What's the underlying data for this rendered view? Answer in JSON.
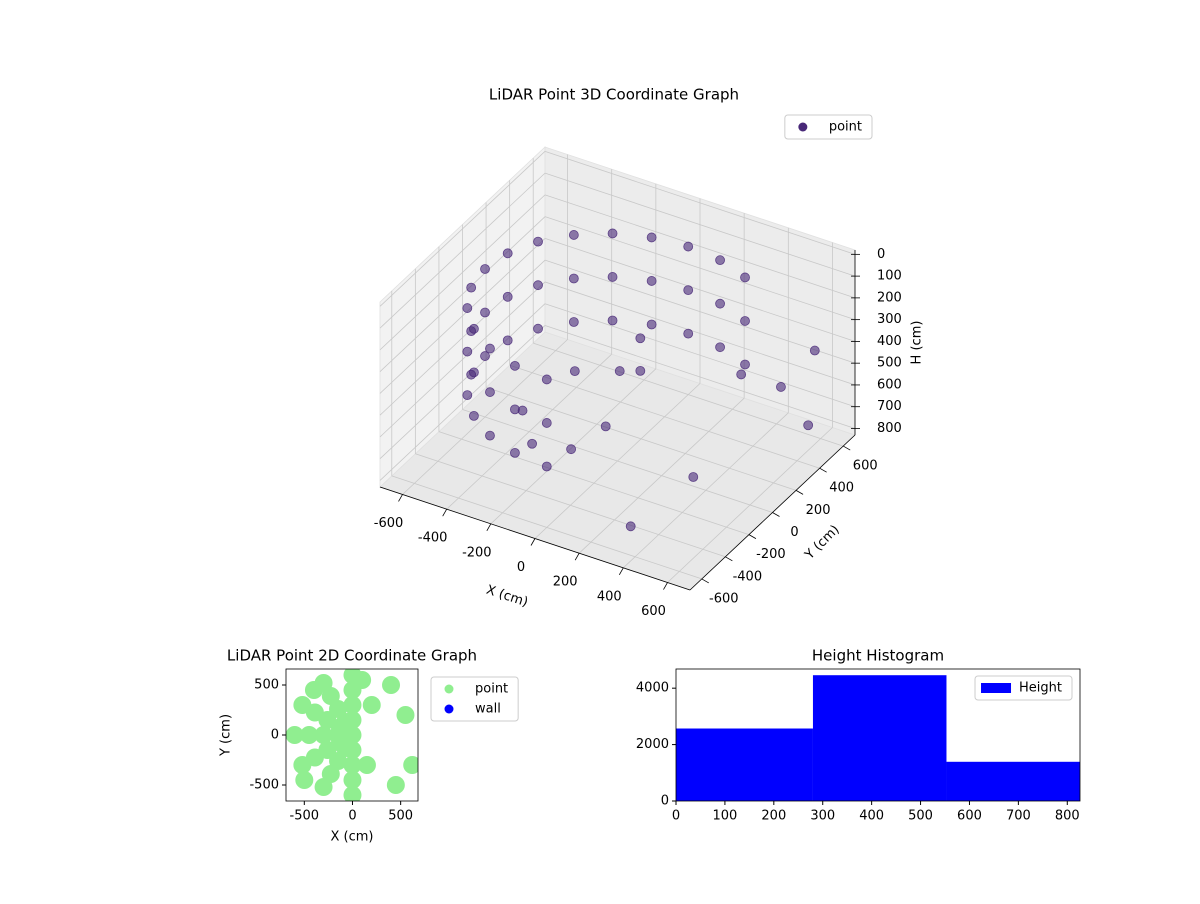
{
  "chart_data": [
    {
      "type": "scatter3d",
      "title": "LiDAR Point 3D Coordinate Graph",
      "xlabel": "X (cm)",
      "ylabel": "Y (cm)",
      "zlabel": "H (cm)",
      "xlim": [
        -702,
        702
      ],
      "ylim": [
        -700,
        700
      ],
      "zlim": [
        -20,
        830
      ],
      "zinvert": true,
      "xticks": [
        -600,
        -400,
        -200,
        0,
        200,
        400,
        600
      ],
      "yticks": [
        -600,
        -400,
        -200,
        0,
        200,
        400,
        600
      ],
      "zticks": [
        0,
        100,
        200,
        300,
        400,
        500,
        600,
        700,
        800
      ],
      "grid": true,
      "legend": "upper right",
      "series": [
        {
          "name": "point",
          "color": "#482878",
          "x": [
            300,
            300,
            300,
            155,
            155,
            155,
            0,
            0,
            0,
            -155,
            -155,
            -155,
            -300,
            -300,
            -300,
            -424,
            -424,
            -424,
            -520,
            -520,
            -520,
            -580,
            -580,
            -580,
            -600,
            -600,
            -600,
            -580,
            -580,
            -580,
            -520,
            -520,
            -520,
            -424,
            -424,
            -424,
            -300,
            -300,
            -300,
            -155,
            -155,
            -155,
            0,
            0,
            0,
            -300,
            -150,
            0,
            -350,
            -200,
            -50,
            50,
            50,
            400,
            500,
            600,
            650,
            450,
            300
          ],
          "y": [
            520,
            520,
            520,
            580,
            580,
            580,
            600,
            600,
            600,
            580,
            580,
            580,
            520,
            520,
            520,
            424,
            424,
            424,
            300,
            300,
            300,
            155,
            155,
            155,
            0,
            0,
            0,
            -155,
            -155,
            -155,
            -300,
            -300,
            -300,
            -424,
            -424,
            -424,
            -520,
            -520,
            -520,
            -580,
            -580,
            -580,
            -600,
            -600,
            -600,
            200,
            300,
            -100,
            -150,
            -350,
            -300,
            100,
            100,
            300,
            450,
            550,
            400,
            -200,
            -450
          ],
          "z": [
            150,
            350,
            550,
            150,
            350,
            550,
            150,
            350,
            550,
            150,
            350,
            550,
            150,
            350,
            550,
            150,
            350,
            550,
            150,
            350,
            550,
            150,
            350,
            550,
            150,
            350,
            550,
            150,
            350,
            550,
            150,
            350,
            550,
            150,
            350,
            550,
            150,
            350,
            550,
            150,
            350,
            550,
            150,
            350,
            550,
            620,
            620,
            620,
            640,
            640,
            640,
            300,
            450,
            450,
            550,
            400,
            650,
            650,
            800
          ]
        }
      ]
    },
    {
      "type": "scatter",
      "title": "LiDAR Point 2D Coordinate Graph",
      "xlabel": "X (cm)",
      "ylabel": "Y (cm)",
      "xlim": [
        -690,
        680
      ],
      "ylim": [
        -660,
        660
      ],
      "xticks": [
        -500,
        0,
        500
      ],
      "yticks": [
        -500,
        0,
        500
      ],
      "legend": "outside right",
      "series": [
        {
          "name": "point",
          "color": "lightgreen",
          "x": [
            0,
            0,
            -75,
            -130,
            -150,
            -130,
            -75,
            0,
            0,
            -150,
            -260,
            -300,
            -260,
            -150,
            0,
            0,
            -225,
            -390,
            -450,
            -390,
            -225,
            0,
            0,
            -300,
            -520,
            -600,
            -520,
            -300,
            0,
            400,
            550,
            450,
            620,
            200,
            150,
            100,
            -400,
            -500
          ],
          "y": [
            0,
            150,
            130,
            75,
            0,
            -75,
            -130,
            -150,
            300,
            260,
            150,
            0,
            -150,
            -260,
            -300,
            450,
            390,
            225,
            0,
            -225,
            -390,
            -450,
            600,
            520,
            300,
            0,
            -300,
            -520,
            -600,
            500,
            200,
            -500,
            -300,
            300,
            -300,
            550,
            450,
            -450
          ]
        },
        {
          "name": "wall",
          "color": "blue",
          "x": [],
          "y": []
        }
      ]
    },
    {
      "type": "histogram",
      "title": "Height Histogram",
      "xlim": [
        0,
        826
      ],
      "ylim": [
        0,
        4680
      ],
      "xticks": [
        0,
        100,
        200,
        300,
        400,
        500,
        600,
        700,
        800
      ],
      "yticks": [
        0,
        2000,
        4000
      ],
      "bins": [
        0,
        280,
        553,
        826
      ],
      "legend": "upper right",
      "series": [
        {
          "name": "Height",
          "color": "blue",
          "values": [
            2570,
            4460,
            1390
          ]
        }
      ]
    }
  ]
}
